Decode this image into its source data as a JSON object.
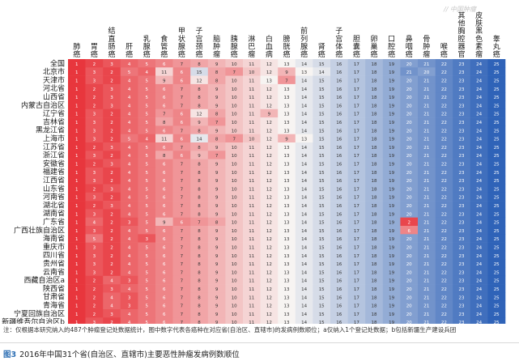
{
  "chart_data": {
    "type": "heatmap",
    "title": "",
    "columns": [
      "肺癌",
      "胃癌",
      "结直肠癌",
      "肝癌",
      "乳腺癌",
      "食管癌",
      "甲状腺癌",
      "子宫颈癌",
      "脑肿瘤",
      "胰腺癌",
      "淋巴瘤",
      "白血病",
      "膀胱癌",
      "前列腺癌",
      "肾癌",
      "子宫体癌",
      "胆囊癌",
      "卵巢癌",
      "口腔癌",
      "鼻咽癌",
      "骨肿瘤",
      "喉癌",
      "其他胸腔器官",
      "皮肤黑色素瘤",
      "睾丸癌"
    ],
    "rows": [
      "全国",
      "北京市",
      "天津市",
      "河北省",
      "山西省",
      "内蒙古自治区",
      "辽宁省",
      "吉林省",
      "黑龙江省",
      "上海市",
      "江苏省",
      "浙江省",
      "安徽省",
      "福建省",
      "江西省",
      "山东省",
      "河南省",
      "湖北省",
      "湖南省",
      "广东省",
      "广西壮族自治区",
      "海南省",
      "重庆市",
      "四川省",
      "贵州省",
      "云南省",
      "西藏自治区a",
      "陕西省",
      "甘肃省",
      "青海省",
      "宁夏回族自治区",
      "新疆维吾尔自治区b"
    ],
    "values": [
      [
        1,
        2,
        3,
        4,
        5,
        6,
        7,
        8,
        9,
        10,
        11,
        12,
        13,
        14,
        15,
        16,
        17,
        18,
        19,
        20,
        21,
        22,
        23,
        24,
        25
      ],
      [
        1,
        3,
        2,
        5,
        4,
        11,
        6,
        15,
        8,
        7,
        10,
        12,
        9,
        13,
        14,
        16,
        17,
        18,
        19,
        21,
        20,
        22,
        23,
        24,
        25
      ],
      [
        1,
        3,
        2,
        4,
        5,
        9,
        6,
        12,
        8,
        10,
        11,
        13,
        7,
        14,
        15,
        16,
        17,
        18,
        19,
        20,
        21,
        22,
        23,
        24,
        25
      ],
      [
        1,
        2,
        3,
        4,
        5,
        6,
        7,
        8,
        9,
        10,
        11,
        12,
        13,
        14,
        15,
        16,
        17,
        18,
        19,
        20,
        21,
        22,
        23,
        24,
        25
      ],
      [
        1,
        2,
        3,
        4,
        5,
        6,
        7,
        8,
        9,
        10,
        11,
        12,
        13,
        14,
        15,
        16,
        17,
        18,
        19,
        20,
        21,
        22,
        23,
        24,
        25
      ],
      [
        1,
        2,
        3,
        4,
        5,
        6,
        7,
        8,
        9,
        10,
        11,
        12,
        13,
        14,
        15,
        16,
        17,
        18,
        19,
        20,
        21,
        22,
        23,
        24,
        25
      ],
      [
        1,
        3,
        2,
        4,
        5,
        7,
        6,
        12,
        8,
        10,
        11,
        9,
        13,
        14,
        15,
        16,
        17,
        18,
        19,
        20,
        21,
        22,
        23,
        24,
        25
      ],
      [
        1,
        3,
        2,
        4,
        5,
        8,
        6,
        9,
        7,
        10,
        11,
        12,
        13,
        14,
        15,
        16,
        17,
        18,
        19,
        20,
        21,
        22,
        23,
        24,
        25
      ],
      [
        1,
        3,
        2,
        4,
        5,
        6,
        7,
        8,
        9,
        10,
        11,
        12,
        13,
        14,
        15,
        16,
        17,
        18,
        19,
        20,
        21,
        22,
        23,
        24,
        25
      ],
      [
        1,
        3,
        2,
        5,
        4,
        11,
        6,
        14,
        8,
        7,
        10,
        12,
        9,
        13,
        15,
        16,
        17,
        18,
        19,
        20,
        21,
        22,
        23,
        24,
        25
      ],
      [
        1,
        2,
        3,
        4,
        5,
        6,
        7,
        8,
        9,
        10,
        11,
        12,
        13,
        14,
        15,
        16,
        17,
        18,
        19,
        20,
        21,
        22,
        23,
        24,
        25
      ],
      [
        1,
        3,
        2,
        4,
        5,
        8,
        6,
        9,
        7,
        10,
        11,
        12,
        13,
        14,
        15,
        16,
        17,
        18,
        19,
        20,
        21,
        22,
        23,
        24,
        25
      ],
      [
        1,
        2,
        3,
        4,
        5,
        6,
        7,
        8,
        9,
        10,
        11,
        12,
        13,
        14,
        15,
        16,
        17,
        18,
        19,
        20,
        21,
        22,
        23,
        24,
        25
      ],
      [
        1,
        3,
        2,
        4,
        5,
        6,
        7,
        8,
        9,
        10,
        11,
        12,
        13,
        14,
        15,
        16,
        17,
        18,
        19,
        20,
        21,
        22,
        23,
        24,
        25
      ],
      [
        1,
        3,
        2,
        4,
        5,
        6,
        7,
        8,
        9,
        10,
        11,
        12,
        13,
        14,
        15,
        16,
        17,
        18,
        19,
        20,
        21,
        22,
        23,
        24,
        25
      ],
      [
        1,
        2,
        3,
        4,
        5,
        6,
        7,
        8,
        9,
        10,
        11,
        12,
        13,
        14,
        15,
        16,
        17,
        18,
        19,
        20,
        21,
        22,
        23,
        24,
        25
      ],
      [
        1,
        3,
        2,
        4,
        5,
        6,
        7,
        8,
        9,
        10,
        11,
        12,
        13,
        14,
        15,
        16,
        17,
        18,
        19,
        20,
        21,
        22,
        23,
        24,
        25
      ],
      [
        1,
        2,
        3,
        4,
        5,
        6,
        7,
        8,
        9,
        10,
        11,
        12,
        13,
        14,
        15,
        16,
        17,
        18,
        19,
        20,
        21,
        22,
        23,
        24,
        25
      ],
      [
        1,
        3,
        2,
        4,
        5,
        6,
        7,
        8,
        9,
        10,
        11,
        12,
        13,
        14,
        15,
        16,
        17,
        18,
        19,
        20,
        21,
        22,
        23,
        24,
        25
      ],
      [
        1,
        4,
        2,
        3,
        5,
        9,
        6,
        7,
        8,
        10,
        11,
        12,
        13,
        14,
        15,
        16,
        17,
        18,
        19,
        2,
        21,
        22,
        23,
        24,
        25
      ],
      [
        1,
        3,
        2,
        4,
        5,
        6,
        7,
        8,
        9,
        10,
        11,
        12,
        13,
        14,
        15,
        16,
        17,
        18,
        19,
        6,
        21,
        22,
        23,
        24,
        25
      ],
      [
        1,
        5,
        2,
        4,
        3,
        6,
        7,
        8,
        9,
        10,
        11,
        12,
        13,
        14,
        15,
        16,
        17,
        18,
        19,
        20,
        21,
        22,
        23,
        24,
        25
      ],
      [
        1,
        3,
        2,
        4,
        5,
        6,
        7,
        8,
        9,
        10,
        11,
        12,
        13,
        14,
        15,
        16,
        17,
        18,
        19,
        20,
        21,
        22,
        23,
        24,
        25
      ],
      [
        1,
        3,
        2,
        4,
        5,
        6,
        7,
        8,
        9,
        10,
        11,
        12,
        13,
        14,
        15,
        16,
        17,
        18,
        19,
        20,
        21,
        22,
        23,
        24,
        25
      ],
      [
        1,
        3,
        2,
        4,
        5,
        6,
        7,
        8,
        9,
        10,
        11,
        12,
        13,
        14,
        15,
        16,
        17,
        18,
        19,
        20,
        21,
        22,
        23,
        24,
        25
      ],
      [
        1,
        3,
        2,
        4,
        5,
        6,
        7,
        8,
        9,
        10,
        11,
        12,
        13,
        14,
        15,
        16,
        17,
        18,
        19,
        20,
        21,
        22,
        23,
        24,
        25
      ],
      [
        1,
        2,
        4,
        3,
        5,
        6,
        7,
        8,
        9,
        10,
        11,
        12,
        13,
        14,
        15,
        16,
        17,
        18,
        19,
        20,
        21,
        22,
        23,
        24,
        25
      ],
      [
        1,
        2,
        3,
        4,
        5,
        6,
        7,
        8,
        9,
        10,
        11,
        12,
        13,
        14,
        15,
        16,
        17,
        18,
        19,
        20,
        21,
        22,
        23,
        24,
        25
      ],
      [
        1,
        2,
        4,
        3,
        5,
        6,
        7,
        8,
        9,
        10,
        11,
        12,
        13,
        14,
        15,
        16,
        17,
        18,
        19,
        20,
        21,
        22,
        23,
        24,
        25
      ],
      [
        1,
        2,
        4,
        3,
        5,
        6,
        7,
        8,
        9,
        10,
        11,
        12,
        13,
        14,
        15,
        16,
        17,
        18,
        19,
        20,
        21,
        22,
        23,
        24,
        25
      ],
      [
        1,
        2,
        3,
        4,
        5,
        6,
        7,
        8,
        9,
        10,
        11,
        12,
        13,
        14,
        15,
        16,
        17,
        18,
        19,
        20,
        21,
        22,
        23,
        24,
        25
      ],
      [
        1,
        3,
        2,
        4,
        5,
        6,
        7,
        8,
        9,
        10,
        11,
        12,
        13,
        14,
        15,
        16,
        17,
        18,
        19,
        20,
        21,
        22,
        23,
        24,
        25
      ]
    ],
    "color_low": "#e8363d",
    "color_mid": "#f7f4f2",
    "color_high": "#2f63b8",
    "value_range": [
      1,
      25
    ]
  },
  "note": "注：仅根据本研究纳入的487个肿瘤登记处数据统计，图中数字代表各癌种在对应省(自治区、直辖市)的发病例数顺位；a仅纳入1个登记处数据；b包括新疆生产建设兵团",
  "caption": {
    "figure_label": "图3",
    "text": "2016年中国31个省(自治区、直辖市)主要恶性肿瘤发病例数顺位"
  },
  "watermark": "// 中国肿瘤"
}
